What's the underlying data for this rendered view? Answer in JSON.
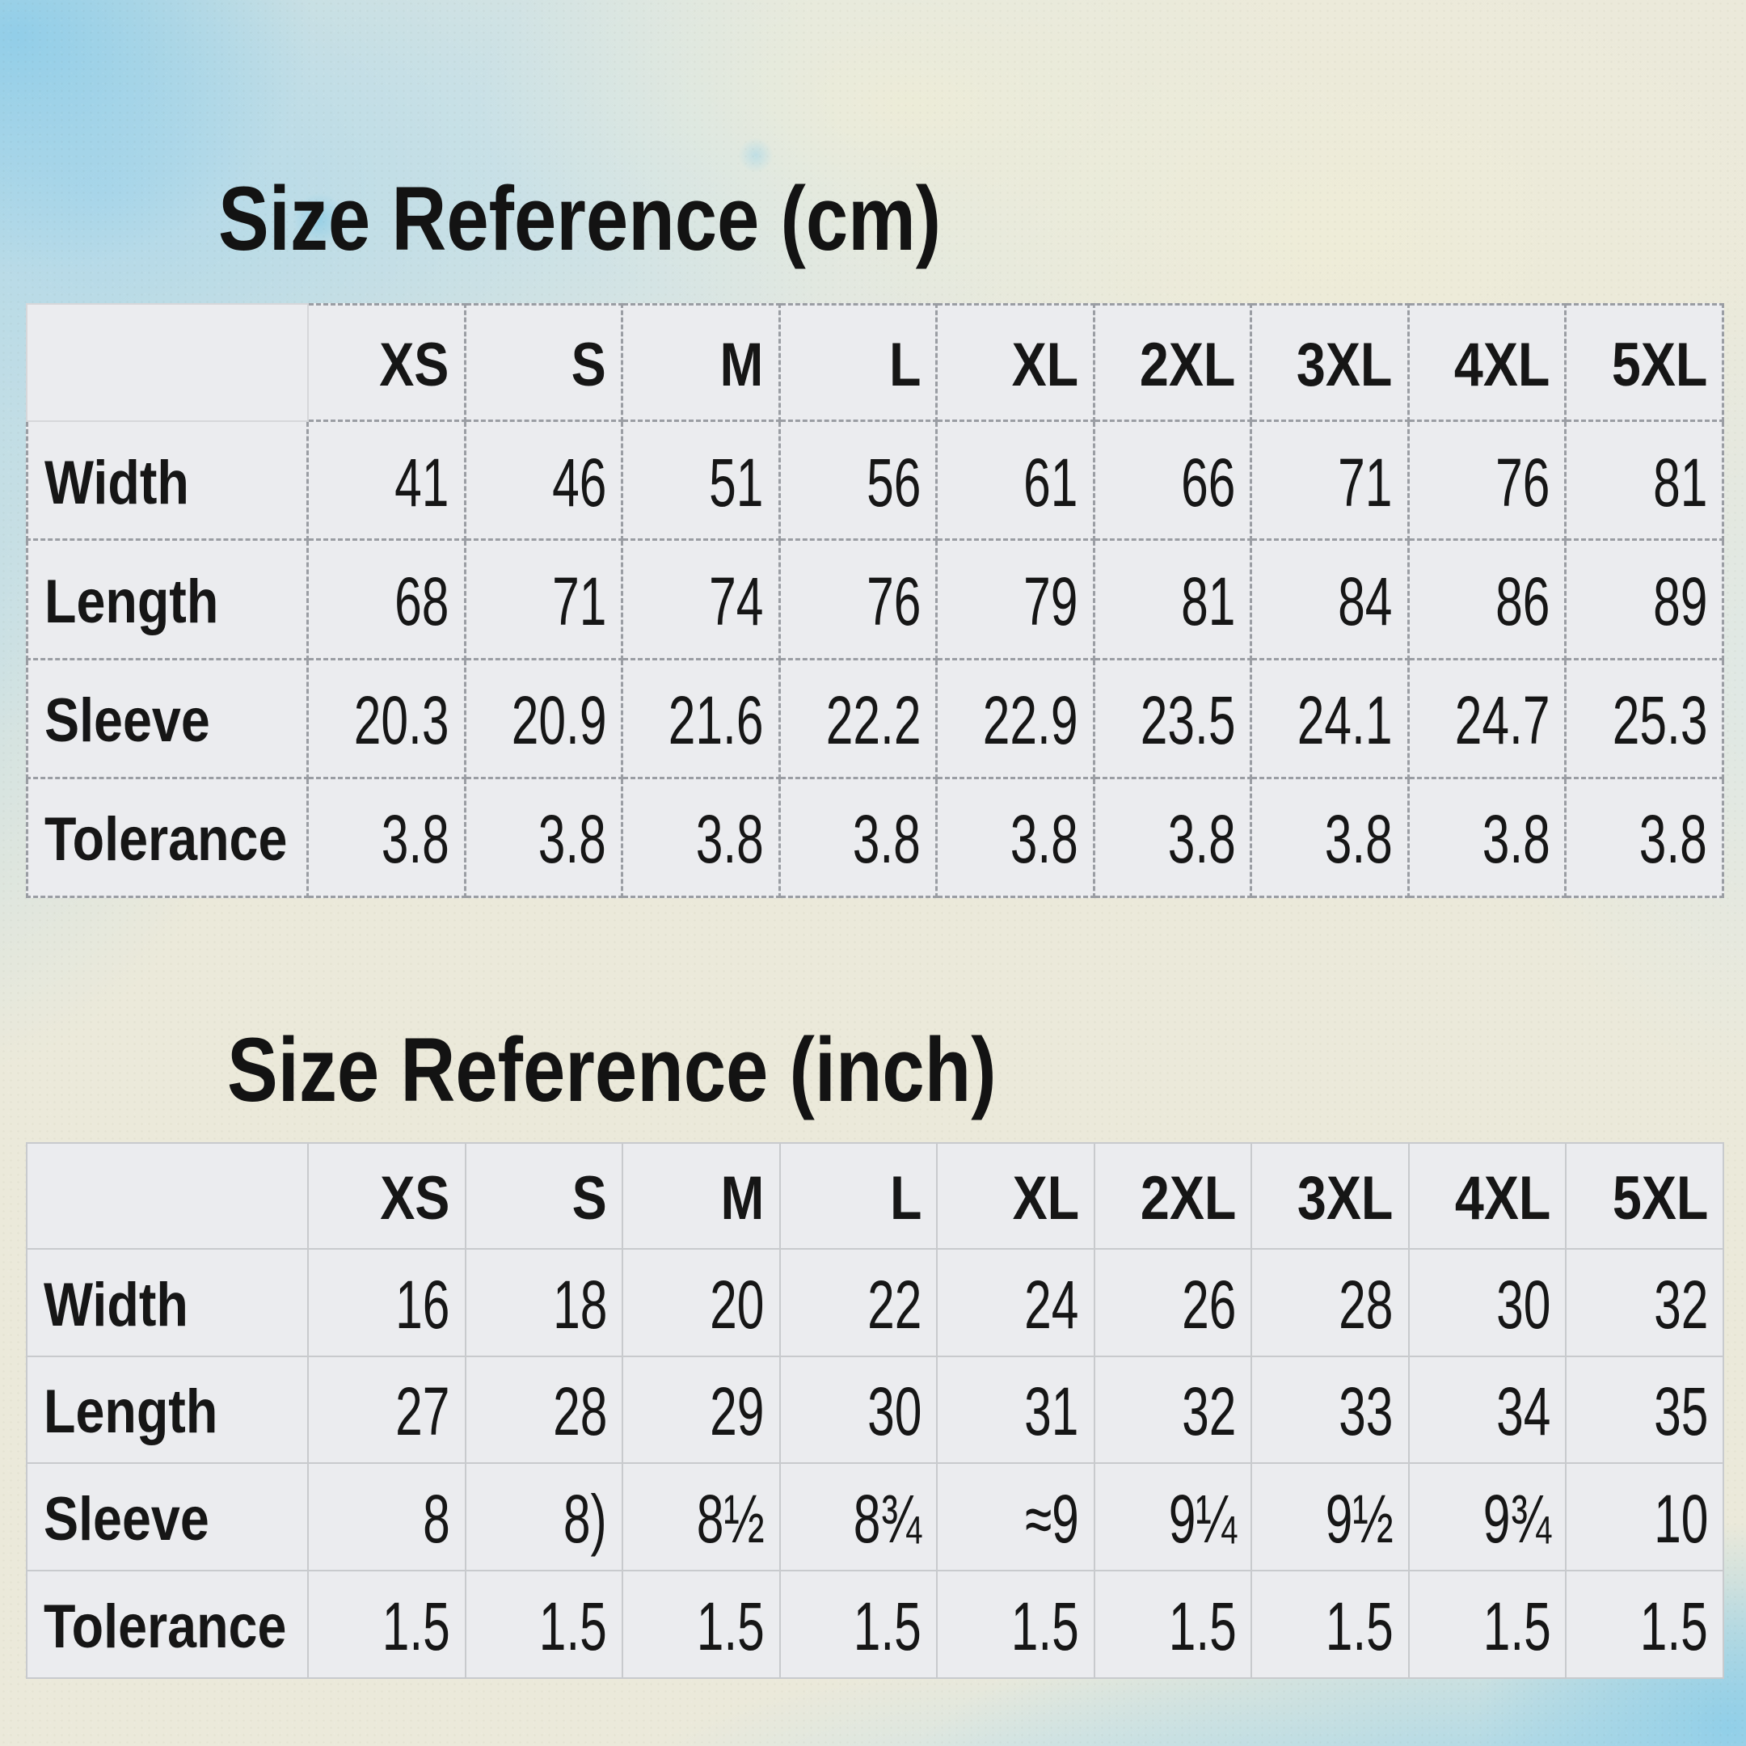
{
  "page": {
    "description": "Apparel size chart infographic on watercolor paper",
    "colors": {
      "ink": "#161616",
      "cell_background": "#ebecef",
      "dashed_border": "#9a9da3",
      "solid_border": "#c8cacd",
      "paper_cream": "#ebe9da",
      "watercolor_blue": "#a9d7ec"
    }
  },
  "tables": [
    {
      "title": "Size Reference (cm)",
      "unit": "cm",
      "border_style": "dashed",
      "columns": [
        "XS",
        "S",
        "M",
        "L",
        "XL",
        "2XL",
        "3XL",
        "4XL",
        "5XL"
      ],
      "rows": [
        {
          "label": "Width",
          "values": [
            "41",
            "46",
            "51",
            "56",
            "61",
            "66",
            "71",
            "76",
            "81"
          ]
        },
        {
          "label": "Length",
          "values": [
            "68",
            "71",
            "74",
            "76",
            "79",
            "81",
            "84",
            "86",
            "89"
          ]
        },
        {
          "label": "Sleeve",
          "values": [
            "20.3",
            "20.9",
            "21.6",
            "22.2",
            "22.9",
            "23.5",
            "24.1",
            "24.7",
            "25.3"
          ]
        },
        {
          "label": "Tolerance",
          "values": [
            "3.8",
            "3.8",
            "3.8",
            "3.8",
            "3.8",
            "3.8",
            "3.8",
            "3.8",
            "3.8"
          ]
        }
      ]
    },
    {
      "title": "Size Reference (inch)",
      "unit": "inch",
      "border_style": "solid",
      "columns": [
        "XS",
        "S",
        "M",
        "L",
        "XL",
        "2XL",
        "3XL",
        "4XL",
        "5XL"
      ],
      "rows": [
        {
          "label": "Width",
          "values": [
            "16",
            "18",
            "20",
            "22",
            "24",
            "26",
            "28",
            "30",
            "32"
          ]
        },
        {
          "label": "Length",
          "values": [
            "27",
            "28",
            "29",
            "30",
            "31",
            "32",
            "33",
            "34",
            "35"
          ]
        },
        {
          "label": "Sleeve",
          "values": [
            "8",
            "8)",
            "8½",
            "8¾",
            "≈9",
            "9¼",
            "9½",
            "9¾",
            "10"
          ]
        },
        {
          "label": "Tolerance",
          "values": [
            "1.5",
            "1.5",
            "1.5",
            "1.5",
            "1.5",
            "1.5",
            "1.5",
            "1.5",
            "1.5"
          ]
        }
      ]
    }
  ]
}
